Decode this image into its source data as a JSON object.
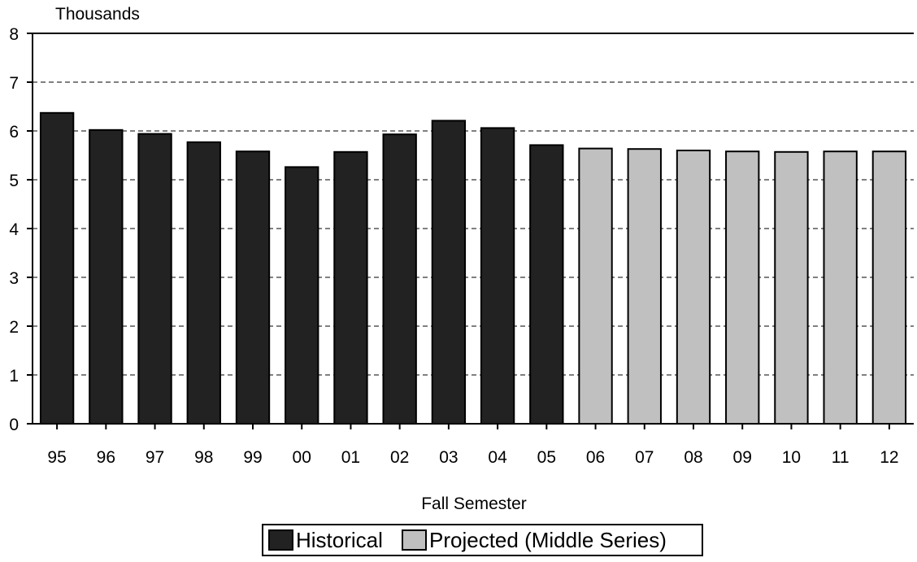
{
  "chart_data": {
    "type": "bar",
    "title": "",
    "ylabel": "Thousands",
    "xlabel": "Fall Semester",
    "ylim": [
      0,
      8
    ],
    "yticks": [
      0,
      1,
      2,
      3,
      4,
      5,
      6,
      7,
      8
    ],
    "grid": "dashed horizontal lines at 1 through 7",
    "legend_position": "bottom-center",
    "categories": [
      "95",
      "96",
      "97",
      "98",
      "99",
      "00",
      "01",
      "02",
      "03",
      "04",
      "05",
      "06",
      "07",
      "08",
      "09",
      "10",
      "11",
      "12"
    ],
    "series": [
      {
        "name": "Historical",
        "color": "#222222",
        "values": [
          6.37,
          6.02,
          5.94,
          5.77,
          5.58,
          5.26,
          5.57,
          5.93,
          6.21,
          6.06,
          5.71,
          null,
          null,
          null,
          null,
          null,
          null,
          null
        ]
      },
      {
        "name": "Projected (Middle Series)",
        "color": "#c0c0c0",
        "values": [
          null,
          null,
          null,
          null,
          null,
          null,
          null,
          null,
          null,
          null,
          null,
          5.64,
          5.63,
          5.6,
          5.58,
          5.57,
          5.58,
          5.58
        ]
      }
    ]
  }
}
